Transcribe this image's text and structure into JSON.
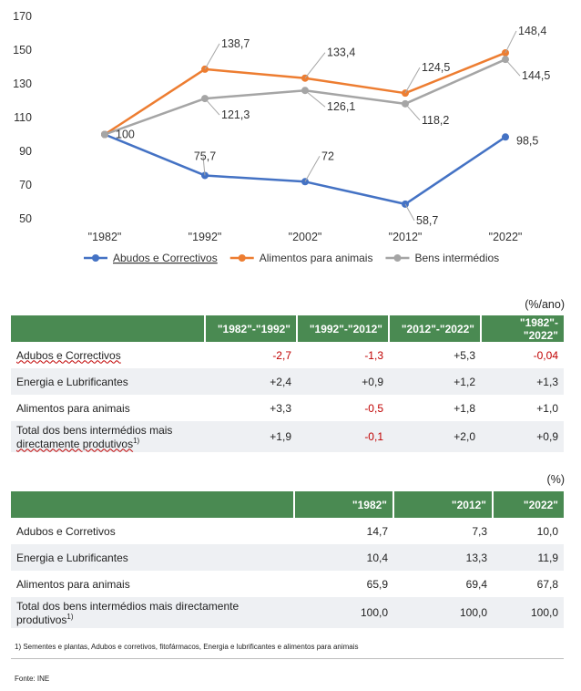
{
  "chart_data": {
    "type": "line",
    "categories": [
      "\"1982\"",
      "\"1992\"",
      "\"2002\"",
      "\"2012\"",
      "\"2022\""
    ],
    "ylim": [
      50,
      170
    ],
    "yticks": [
      50,
      70,
      90,
      110,
      130,
      150,
      170
    ],
    "grid": false,
    "legend_position": "bottom",
    "series": [
      {
        "name": "Abudos e Correctivos",
        "color": "#4472c4",
        "values": [
          100,
          75.7,
          72,
          58.7,
          98.5
        ],
        "labels": [
          "100",
          "75,7",
          "72",
          "58,7",
          "98,5"
        ]
      },
      {
        "name": "Alimentos para animais",
        "color": "#ed7d31",
        "values": [
          100,
          138.7,
          133.4,
          124.5,
          148.4
        ],
        "labels": [
          "",
          "138,7",
          "133,4",
          "124,5",
          "148,4"
        ]
      },
      {
        "name": "Bens intermédios",
        "color": "#a5a5a5",
        "values": [
          100,
          121.3,
          126.1,
          118.2,
          144.5
        ],
        "labels": [
          "",
          "121,3",
          "126,1",
          "118,2",
          "144,5"
        ]
      }
    ]
  },
  "table1": {
    "unit": "(%/ano)",
    "headers": [
      "",
      "\"1982\"-\"1992\"",
      "\"1992\"-\"2012\"",
      "\"2012\"-\"2022\"",
      "\"1982\"-\"2022\""
    ],
    "rows": [
      {
        "label": "Adubos e Correctivos",
        "values": [
          "-2,7",
          "-1,3",
          "+5,3",
          "-0,04"
        ]
      },
      {
        "label": "Energia e Lubrificantes",
        "values": [
          "+2,4",
          "+0,9",
          "+1,2",
          "+1,3"
        ]
      },
      {
        "label": "Alimentos para animais",
        "values": [
          "+3,3",
          "-0,5",
          "+1,8",
          "+1,0"
        ]
      },
      {
        "label_line1": "Total dos bens intermédios mais",
        "label_line2": "directamente produtivos",
        "sup": "1)",
        "values": [
          "+1,9",
          "-0,1",
          "+2,0",
          "+0,9"
        ]
      }
    ]
  },
  "table2": {
    "unit": "(%)",
    "headers": [
      "",
      "\"1982\"",
      "\"2012\"",
      "\"2022\""
    ],
    "rows": [
      {
        "label": "Adubos e Corretivos",
        "values": [
          "14,7",
          "7,3",
          "10,0"
        ]
      },
      {
        "label": "Energia e Lubrificantes",
        "values": [
          "10,4",
          "13,3",
          "11,9"
        ]
      },
      {
        "label": "Alimentos para animais",
        "values": [
          "65,9",
          "69,4",
          "67,8"
        ]
      },
      {
        "label_line1": "Total dos bens intermédios mais directamente",
        "label_line2": "produtivos",
        "sup": "1)",
        "values": [
          "100,0",
          "100,0",
          "100,0"
        ]
      }
    ]
  },
  "footnote": "1) Sementes e plantas, Adubos e corretivos, fitofármacos, Energia e lubrificantes e alimentos para animais",
  "source": "Fonte: INE"
}
